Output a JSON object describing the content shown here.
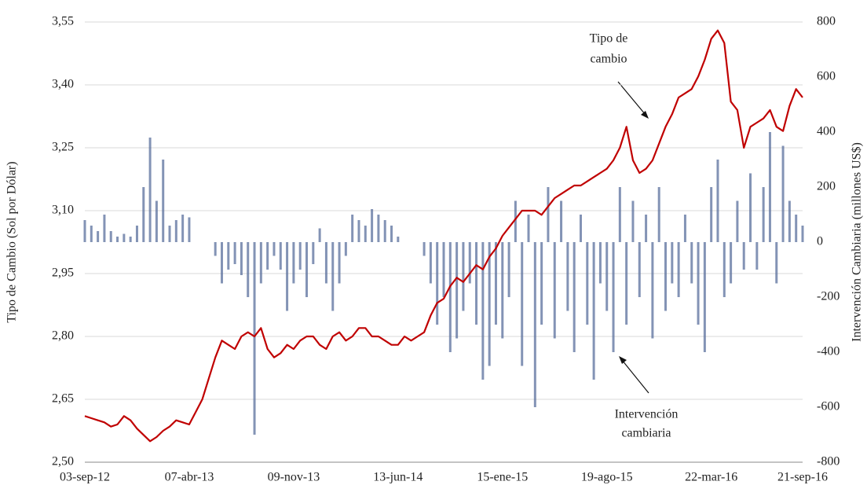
{
  "chart_data": {
    "type": "line",
    "ylabel": "Tipo de Cambio (Sol por Dólar)",
    "y2label": "Intervención Cambiaria (millones US$)",
    "annotations": [
      {
        "lines": [
          "Tipo de",
          "cambio"
        ]
      },
      {
        "lines": [
          "Intervención",
          "cambiaria"
        ]
      }
    ],
    "categories": [
      "03-sep-12",
      null,
      null,
      null,
      null,
      null,
      null,
      null,
      null,
      null,
      null,
      null,
      null,
      null,
      null,
      null,
      "07-abr-13",
      null,
      null,
      null,
      null,
      null,
      null,
      null,
      null,
      null,
      null,
      null,
      null,
      null,
      null,
      null,
      "09-nov-13",
      null,
      null,
      null,
      null,
      null,
      null,
      null,
      null,
      null,
      null,
      null,
      null,
      null,
      null,
      null,
      "13-jun-14",
      null,
      null,
      null,
      null,
      null,
      null,
      null,
      null,
      null,
      null,
      null,
      null,
      null,
      null,
      null,
      "15-ene-15",
      null,
      null,
      null,
      null,
      null,
      null,
      null,
      null,
      null,
      null,
      null,
      null,
      null,
      null,
      null,
      "19-ago-15",
      null,
      null,
      null,
      null,
      null,
      null,
      null,
      null,
      null,
      null,
      null,
      null,
      null,
      null,
      null,
      "22-mar-16",
      null,
      null,
      null,
      null,
      null,
      null,
      null,
      null,
      null,
      null,
      null,
      null,
      null,
      "21-sep-16"
    ],
    "series": [
      {
        "type": "bar",
        "axis": "y2",
        "color": "#5a6f9c",
        "values": [
          80,
          60,
          40,
          100,
          40,
          20,
          30,
          20,
          60,
          200,
          380,
          150,
          300,
          60,
          80,
          100,
          90,
          0,
          0,
          0,
          -50,
          -150,
          -100,
          -80,
          -120,
          -200,
          -700,
          -150,
          -100,
          -50,
          -100,
          -250,
          -150,
          -100,
          -200,
          -80,
          50,
          -150,
          -250,
          -150,
          -50,
          100,
          80,
          60,
          120,
          100,
          80,
          60,
          20,
          0,
          0,
          0,
          -50,
          -150,
          -300,
          -200,
          -400,
          -350,
          -250,
          -150,
          -300,
          -500,
          -450,
          -300,
          -350,
          -200,
          150,
          -450,
          100,
          -600,
          -300,
          200,
          -350,
          150,
          -250,
          -400,
          100,
          -300,
          -500,
          -150,
          -250,
          -400,
          200,
          -300,
          150,
          -200,
          100,
          -350,
          200,
          -250,
          -150,
          -200,
          100,
          -150,
          -300,
          -400,
          200,
          300,
          -200,
          -150,
          150,
          -100,
          250,
          -100,
          200,
          400,
          -150,
          350,
          150,
          100,
          60
        ]
      },
      {
        "type": "line",
        "axis": "y",
        "color": "#c00000",
        "values": [
          2.61,
          2.605,
          2.6,
          2.595,
          2.585,
          2.59,
          2.61,
          2.6,
          2.58,
          2.565,
          2.55,
          2.56,
          2.575,
          2.585,
          2.6,
          2.595,
          2.59,
          2.62,
          2.65,
          2.7,
          2.75,
          2.79,
          2.78,
          2.77,
          2.8,
          2.81,
          2.8,
          2.82,
          2.77,
          2.75,
          2.76,
          2.78,
          2.77,
          2.79,
          2.8,
          2.8,
          2.78,
          2.77,
          2.8,
          2.81,
          2.79,
          2.8,
          2.82,
          2.82,
          2.8,
          2.8,
          2.79,
          2.78,
          2.78,
          2.8,
          2.79,
          2.8,
          2.81,
          2.85,
          2.88,
          2.89,
          2.92,
          2.94,
          2.93,
          2.95,
          2.97,
          2.96,
          2.99,
          3.01,
          3.04,
          3.06,
          3.08,
          3.1,
          3.1,
          3.1,
          3.09,
          3.11,
          3.13,
          3.14,
          3.15,
          3.16,
          3.16,
          3.17,
          3.18,
          3.19,
          3.2,
          3.22,
          3.25,
          3.3,
          3.22,
          3.19,
          3.2,
          3.22,
          3.26,
          3.3,
          3.33,
          3.37,
          3.38,
          3.39,
          3.42,
          3.46,
          3.51,
          3.53,
          3.5,
          3.36,
          3.34,
          3.25,
          3.3,
          3.31,
          3.32,
          3.34,
          3.3,
          3.29,
          3.35,
          3.39,
          3.37
        ]
      }
    ],
    "ylim": [
      2.5,
      3.55
    ],
    "yticks": [
      {
        "value": 2.5,
        "label": "2,50"
      },
      {
        "value": 2.65,
        "label": "2,65"
      },
      {
        "value": 2.8,
        "label": "2,80"
      },
      {
        "value": 2.95,
        "label": "2,95"
      },
      {
        "value": 3.1,
        "label": "3,10"
      },
      {
        "value": 3.25,
        "label": "3,25"
      },
      {
        "value": 3.4,
        "label": "3,40"
      },
      {
        "value": 3.55,
        "label": "3,55"
      }
    ],
    "y2lim": [
      -800,
      800
    ],
    "y2ticks": [
      -800,
      -600,
      -400,
      -200,
      0,
      200,
      400,
      600,
      800
    ],
    "grid": true
  }
}
